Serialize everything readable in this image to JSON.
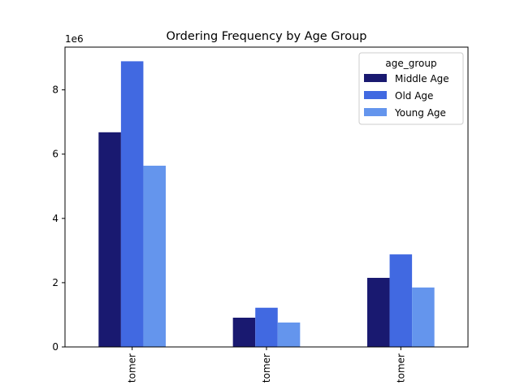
{
  "chart_data": {
    "type": "bar",
    "title": "Ordering Frequency by Age Group",
    "xlabel": "",
    "ylabel": "",
    "categories": [
      "tomer",
      "tomer",
      "tomer"
    ],
    "series": [
      {
        "name": "Middle Age",
        "color": "#191970",
        "values": [
          6680000,
          910000,
          2150000
        ]
      },
      {
        "name": "Old Age",
        "color": "#4169e1",
        "values": [
          8890000,
          1220000,
          2880000
        ]
      },
      {
        "name": "Young Age",
        "color": "#6495ed",
        "values": [
          5640000,
          760000,
          1850000
        ]
      }
    ],
    "ylim": [
      0,
      9330000
    ],
    "yticks": [
      0,
      2,
      4,
      6,
      8
    ],
    "ytick_labels": [
      "0",
      "2",
      "4",
      "6",
      "8"
    ],
    "y_scale_factor_label": "1e6",
    "legend": {
      "title": "age_group",
      "position": "top-right"
    },
    "grid": false
  }
}
